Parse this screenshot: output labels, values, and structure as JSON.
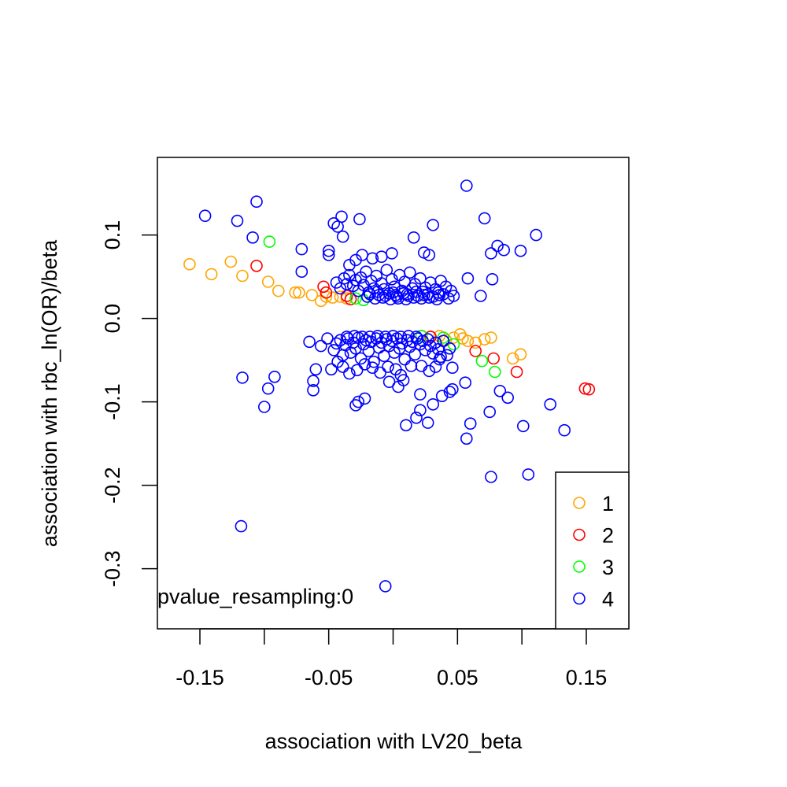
{
  "chart_data": {
    "type": "scatter",
    "title": "",
    "xlabel": "association with LV20_beta",
    "ylabel": "association with rbc_ln(OR)/beta",
    "xlim": [
      -0.183,
      0.183
    ],
    "ylim": [
      -0.372,
      0.193
    ],
    "xticks": [
      -0.15,
      -0.1,
      -0.05,
      0.0,
      0.05,
      0.1,
      0.15
    ],
    "xtick_labels": [
      "-0.15",
      "",
      "-0.05",
      "",
      "0.05",
      "",
      "0.15"
    ],
    "yticks": [
      0.1,
      0.0,
      -0.1,
      -0.2,
      -0.3
    ],
    "ytick_labels": [
      "0.1",
      "0.0",
      "-0.1",
      "-0.2",
      "-0.3"
    ],
    "annotation": "pvalue_resampling:0",
    "legend": {
      "position": "bottom-right",
      "entries": [
        "1",
        "2",
        "3",
        "4"
      ]
    },
    "colors": {
      "1": "#FFA500",
      "2": "#FF0000",
      "3": "#00FF00",
      "4": "#0000FF"
    },
    "series": [
      {
        "name": "1",
        "color": "#FFA500",
        "points": [
          [
            -0.158,
            0.065
          ],
          [
            -0.141,
            0.053
          ],
          [
            -0.126,
            0.068
          ],
          [
            -0.117,
            0.051
          ],
          [
            -0.097,
            0.044
          ],
          [
            -0.089,
            0.033
          ],
          [
            -0.076,
            0.031
          ],
          [
            -0.073,
            0.031
          ],
          [
            -0.063,
            0.028
          ],
          [
            -0.056,
            0.021
          ],
          [
            -0.052,
            0.026
          ],
          [
            -0.047,
            0.025
          ],
          [
            -0.041,
            0.026
          ],
          [
            -0.036,
            0.024
          ],
          [
            0.022,
            -0.021
          ],
          [
            0.029,
            -0.022
          ],
          [
            0.036,
            -0.021
          ],
          [
            0.041,
            -0.026
          ],
          [
            0.047,
            -0.023
          ],
          [
            0.052,
            -0.019
          ],
          [
            0.054,
            -0.024
          ],
          [
            0.058,
            -0.027
          ],
          [
            0.064,
            -0.029
          ],
          [
            0.071,
            -0.025
          ],
          [
            0.076,
            -0.023
          ],
          [
            0.093,
            -0.048
          ],
          [
            0.099,
            -0.043
          ]
        ]
      },
      {
        "name": "2",
        "color": "#FF0000",
        "points": [
          [
            -0.106,
            0.063
          ],
          [
            -0.054,
            0.038
          ],
          [
            -0.052,
            0.031
          ],
          [
            -0.036,
            0.027
          ],
          [
            -0.033,
            0.023
          ],
          [
            0.029,
            -0.022
          ],
          [
            0.064,
            -0.039
          ],
          [
            0.078,
            -0.048
          ],
          [
            0.096,
            -0.064
          ],
          [
            0.149,
            -0.084
          ],
          [
            0.152,
            -0.085
          ]
        ]
      },
      {
        "name": "3",
        "color": "#00FF00",
        "points": [
          [
            -0.096,
            0.092
          ],
          [
            -0.029,
            0.024
          ],
          [
            -0.023,
            0.022
          ],
          [
            0.022,
            -0.021
          ],
          [
            0.039,
            -0.023
          ],
          [
            0.047,
            -0.031
          ],
          [
            0.069,
            -0.051
          ],
          [
            0.079,
            -0.064
          ]
        ]
      },
      {
        "name": "4",
        "color": "#0000FF",
        "points": [
          [
            -0.146,
            0.123
          ],
          [
            -0.121,
            0.117
          ],
          [
            -0.109,
            0.097
          ],
          [
            -0.106,
            0.14
          ],
          [
            -0.071,
            0.083
          ],
          [
            -0.071,
            0.056
          ],
          [
            -0.05,
            0.081
          ],
          [
            -0.05,
            0.076
          ],
          [
            -0.046,
            0.114
          ],
          [
            -0.043,
            0.11
          ],
          [
            -0.04,
            0.122
          ],
          [
            -0.039,
            0.098
          ],
          [
            -0.026,
            0.119
          ],
          [
            -0.034,
            0.064
          ],
          [
            -0.029,
            0.07
          ],
          [
            -0.024,
            0.076
          ],
          [
            -0.016,
            0.072
          ],
          [
            -0.009,
            0.074
          ],
          [
            -0.001,
            0.078
          ],
          [
            0.016,
            0.097
          ],
          [
            0.024,
            0.079
          ],
          [
            0.028,
            0.076
          ],
          [
            0.031,
            0.112
          ],
          [
            0.057,
            0.159
          ],
          [
            0.071,
            0.12
          ],
          [
            0.076,
            0.078
          ],
          [
            0.081,
            0.087
          ],
          [
            0.086,
            0.082
          ],
          [
            0.077,
            0.047
          ],
          [
            0.099,
            0.081
          ],
          [
            0.111,
            0.1
          ],
          [
            0.068,
            0.027
          ],
          [
            0.058,
            0.048
          ],
          [
            -0.044,
            0.043
          ],
          [
            -0.041,
            0.036
          ],
          [
            -0.038,
            0.048
          ],
          [
            -0.036,
            0.041
          ],
          [
            -0.034,
            0.052
          ],
          [
            -0.031,
            0.039
          ],
          [
            -0.029,
            0.046
          ],
          [
            -0.027,
            0.033
          ],
          [
            -0.025,
            0.049
          ],
          [
            -0.023,
            0.04
          ],
          [
            -0.021,
            0.056
          ],
          [
            -0.019,
            0.031
          ],
          [
            -0.017,
            0.045
          ],
          [
            -0.015,
            0.036
          ],
          [
            -0.013,
            0.051
          ],
          [
            -0.011,
            0.028
          ],
          [
            -0.009,
            0.042
          ],
          [
            -0.007,
            0.035
          ],
          [
            -0.005,
            0.058
          ],
          [
            -0.003,
            0.03
          ],
          [
            -0.001,
            0.047
          ],
          [
            0.001,
            0.038
          ],
          [
            0.003,
            0.026
          ],
          [
            0.005,
            0.052
          ],
          [
            0.007,
            0.033
          ],
          [
            0.009,
            0.044
          ],
          [
            0.011,
            0.029
          ],
          [
            0.013,
            0.055
          ],
          [
            0.015,
            0.036
          ],
          [
            0.017,
            0.041
          ],
          [
            0.019,
            0.027
          ],
          [
            0.021,
            0.048
          ],
          [
            0.023,
            0.032
          ],
          [
            0.025,
            0.037
          ],
          [
            0.027,
            0.029
          ],
          [
            0.029,
            0.043
          ],
          [
            0.031,
            0.026
          ],
          [
            0.033,
            0.035
          ],
          [
            0.035,
            0.031
          ],
          [
            0.037,
            0.045
          ],
          [
            0.039,
            0.029
          ],
          [
            0.041,
            0.038
          ],
          [
            0.043,
            0.024
          ],
          [
            0.045,
            0.033
          ],
          [
            0.047,
            0.027
          ],
          [
            -0.02,
            0.026
          ],
          [
            -0.014,
            0.024
          ],
          [
            -0.008,
            0.025
          ],
          [
            -0.002,
            0.023
          ],
          [
            0.004,
            0.024
          ],
          [
            0.01,
            0.023
          ],
          [
            0.016,
            0.025
          ],
          [
            0.022,
            0.024
          ],
          [
            0.028,
            0.025
          ],
          [
            0.034,
            0.023
          ],
          [
            -0.012,
            0.032
          ],
          [
            0.0,
            0.031
          ],
          [
            0.008,
            0.03
          ],
          [
            0.018,
            0.032
          ],
          [
            -0.006,
            0.027
          ],
          [
            0.012,
            0.027
          ],
          [
            0.024,
            0.028
          ],
          [
            -0.018,
            0.029
          ],
          [
            0.002,
            0.028
          ],
          [
            0.036,
            0.028
          ],
          [
            -0.065,
            -0.028
          ],
          [
            -0.056,
            -0.033
          ],
          [
            -0.051,
            -0.024
          ],
          [
            -0.046,
            -0.038
          ],
          [
            -0.044,
            -0.03
          ],
          [
            -0.041,
            -0.026
          ],
          [
            -0.039,
            -0.044
          ],
          [
            -0.037,
            -0.032
          ],
          [
            -0.035,
            -0.024
          ],
          [
            -0.033,
            -0.041
          ],
          [
            -0.031,
            -0.029
          ],
          [
            -0.029,
            -0.036
          ],
          [
            -0.027,
            -0.023
          ],
          [
            -0.025,
            -0.048
          ],
          [
            -0.023,
            -0.031
          ],
          [
            -0.021,
            -0.026
          ],
          [
            -0.019,
            -0.039
          ],
          [
            -0.017,
            -0.028
          ],
          [
            -0.015,
            -0.052
          ],
          [
            -0.013,
            -0.024
          ],
          [
            -0.011,
            -0.035
          ],
          [
            -0.009,
            -0.029
          ],
          [
            -0.007,
            -0.045
          ],
          [
            -0.005,
            -0.025
          ],
          [
            -0.003,
            -0.033
          ],
          [
            -0.001,
            -0.027
          ],
          [
            0.001,
            -0.041
          ],
          [
            0.003,
            -0.024
          ],
          [
            0.005,
            -0.036
          ],
          [
            0.007,
            -0.03
          ],
          [
            0.009,
            -0.049
          ],
          [
            0.011,
            -0.026
          ],
          [
            0.013,
            -0.034
          ],
          [
            0.015,
            -0.028
          ],
          [
            0.017,
            -0.043
          ],
          [
            0.019,
            -0.024
          ],
          [
            0.021,
            -0.031
          ],
          [
            0.023,
            -0.027
          ],
          [
            0.025,
            -0.038
          ],
          [
            0.027,
            -0.025
          ],
          [
            0.029,
            -0.033
          ],
          [
            0.031,
            -0.042
          ],
          [
            0.033,
            -0.029
          ],
          [
            0.035,
            -0.037
          ],
          [
            0.037,
            -0.046
          ],
          [
            0.039,
            -0.027
          ],
          [
            0.042,
            -0.044
          ],
          [
            0.044,
            -0.036
          ],
          [
            0.046,
            -0.059
          ],
          [
            -0.018,
            -0.022
          ],
          [
            -0.012,
            -0.021
          ],
          [
            -0.006,
            -0.022
          ],
          [
            0.0,
            -0.021
          ],
          [
            0.006,
            -0.022
          ],
          [
            0.012,
            -0.021
          ],
          [
            0.018,
            -0.022
          ],
          [
            -0.024,
            -0.022
          ],
          [
            -0.03,
            -0.021
          ],
          [
            -0.036,
            -0.022
          ],
          [
            -0.048,
            -0.061
          ],
          [
            -0.043,
            -0.052
          ],
          [
            -0.039,
            -0.058
          ],
          [
            -0.034,
            -0.066
          ],
          [
            -0.028,
            -0.062
          ],
          [
            -0.022,
            -0.055
          ],
          [
            -0.016,
            -0.059
          ],
          [
            -0.01,
            -0.065
          ],
          [
            -0.004,
            -0.058
          ],
          [
            0.002,
            -0.061
          ],
          [
            0.004,
            -0.082
          ],
          [
            0.006,
            -0.068
          ],
          [
            0.008,
            -0.074
          ],
          [
            -0.003,
            -0.076
          ],
          [
            0.014,
            -0.057
          ],
          [
            0.022,
            -0.057
          ],
          [
            0.028,
            -0.063
          ],
          [
            0.033,
            -0.058
          ],
          [
            0.036,
            -0.049
          ],
          [
            -0.062,
            -0.075
          ],
          [
            -0.062,
            -0.086
          ],
          [
            -0.06,
            -0.061
          ],
          [
            -0.029,
            -0.104
          ],
          [
            -0.027,
            -0.1
          ],
          [
            -0.022,
            -0.096
          ],
          [
            -0.117,
            -0.071
          ],
          [
            -0.097,
            -0.084
          ],
          [
            -0.092,
            -0.07
          ],
          [
            -0.1,
            -0.106
          ],
          [
            0.021,
            -0.091
          ],
          [
            0.021,
            -0.11
          ],
          [
            0.018,
            -0.119
          ],
          [
            0.01,
            -0.128
          ],
          [
            0.027,
            -0.125
          ],
          [
            0.031,
            -0.103
          ],
          [
            0.038,
            -0.093
          ],
          [
            0.044,
            -0.088
          ],
          [
            0.046,
            -0.085
          ],
          [
            0.056,
            -0.077
          ],
          [
            0.057,
            -0.144
          ],
          [
            0.06,
            -0.126
          ],
          [
            0.075,
            -0.112
          ],
          [
            0.076,
            -0.19
          ],
          [
            0.083,
            -0.087
          ],
          [
            0.089,
            -0.095
          ],
          [
            0.101,
            -0.129
          ],
          [
            0.105,
            -0.187
          ],
          [
            0.122,
            -0.103
          ],
          [
            0.133,
            -0.134
          ],
          [
            -0.118,
            -0.249
          ],
          [
            -0.006,
            -0.321
          ]
        ]
      }
    ]
  }
}
